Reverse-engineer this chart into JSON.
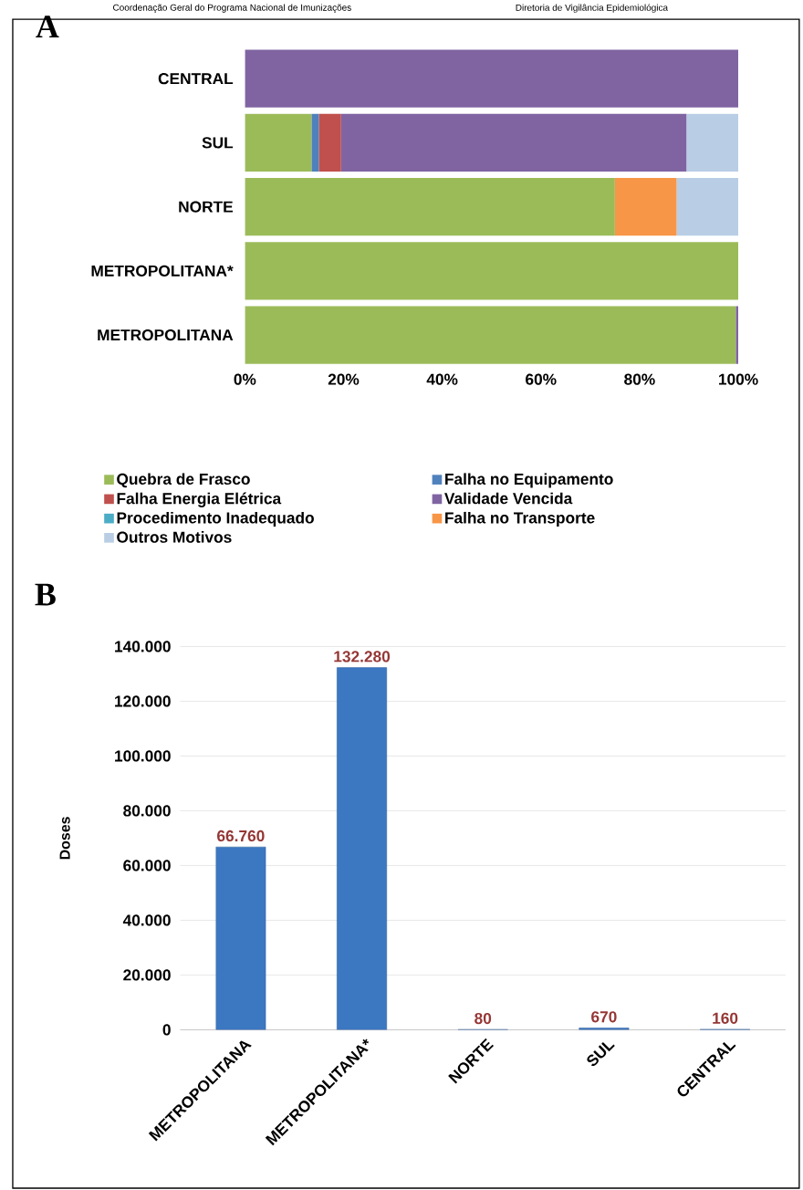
{
  "chart_data": [
    {
      "type": "bar",
      "title": "A",
      "orientation": "horizontal",
      "stacked": true,
      "annotations": [
        "Coordenação Geral do Programa Nacional de Imunizações",
        "Diretoria de Vigilância Epidemiológica"
      ],
      "categories": [
        "CENTRAL",
        "SUL",
        "NORTE",
        "METROPOLITANA*",
        "METROPOLITANA"
      ],
      "series": [
        {
          "name": "Quebra de Frasco",
          "color": "#9bbb59",
          "values": [
            0,
            13.5,
            75,
            100,
            99.5
          ]
        },
        {
          "name": "Falha no Equipamento",
          "color": "#4f81bd",
          "values": [
            0,
            1.5,
            0,
            0,
            0
          ]
        },
        {
          "name": "Falha Energia Elétrica",
          "color": "#c0504d",
          "values": [
            0,
            4.5,
            0,
            0,
            0
          ]
        },
        {
          "name": "Validade Vencida",
          "color": "#8064a2",
          "values": [
            100,
            70,
            0,
            0,
            0.5
          ]
        },
        {
          "name": "Procedimento Inadequado",
          "color": "#4bacc6",
          "values": [
            0,
            0,
            0,
            0,
            0
          ]
        },
        {
          "name": "Falha no Transporte",
          "color": "#f79646",
          "values": [
            0,
            0,
            12.5,
            0,
            0
          ]
        },
        {
          "name": "Outros Motivos",
          "color": "#b9cde5",
          "values": [
            0,
            10.5,
            12.5,
            0,
            0
          ]
        }
      ],
      "xlim": [
        0,
        100
      ],
      "xticks": [
        {
          "value": 0,
          "label": "0%"
        },
        {
          "value": 20,
          "label": "20%"
        },
        {
          "value": 40,
          "label": "40%"
        },
        {
          "value": 60,
          "label": "60%"
        },
        {
          "value": 80,
          "label": "80%"
        },
        {
          "value": 100,
          "label": "100%"
        }
      ],
      "legend": "bottom"
    },
    {
      "type": "bar",
      "title": "B",
      "ylabel": "Doses",
      "categories": [
        "METROPOLITANA",
        "METROPOLITANA*",
        "NORTE",
        "SUL",
        "CENTRAL"
      ],
      "values": [
        66760,
        132280,
        80,
        670,
        160
      ],
      "value_labels": [
        "66.760",
        "132.280",
        "80",
        "670",
        "160"
      ],
      "color": "#3c77c2",
      "ylim": [
        0,
        140000
      ],
      "yticks": [
        {
          "value": 0,
          "label": "0"
        },
        {
          "value": 20000,
          "label": "20.000"
        },
        {
          "value": 40000,
          "label": "40.000"
        },
        {
          "value": 60000,
          "label": "60.000"
        },
        {
          "value": 80000,
          "label": "80.000"
        },
        {
          "value": 100000,
          "label": "100.000"
        },
        {
          "value": 120000,
          "label": "120.000"
        },
        {
          "value": 140000,
          "label": "140.000"
        }
      ],
      "grid": "y"
    }
  ]
}
